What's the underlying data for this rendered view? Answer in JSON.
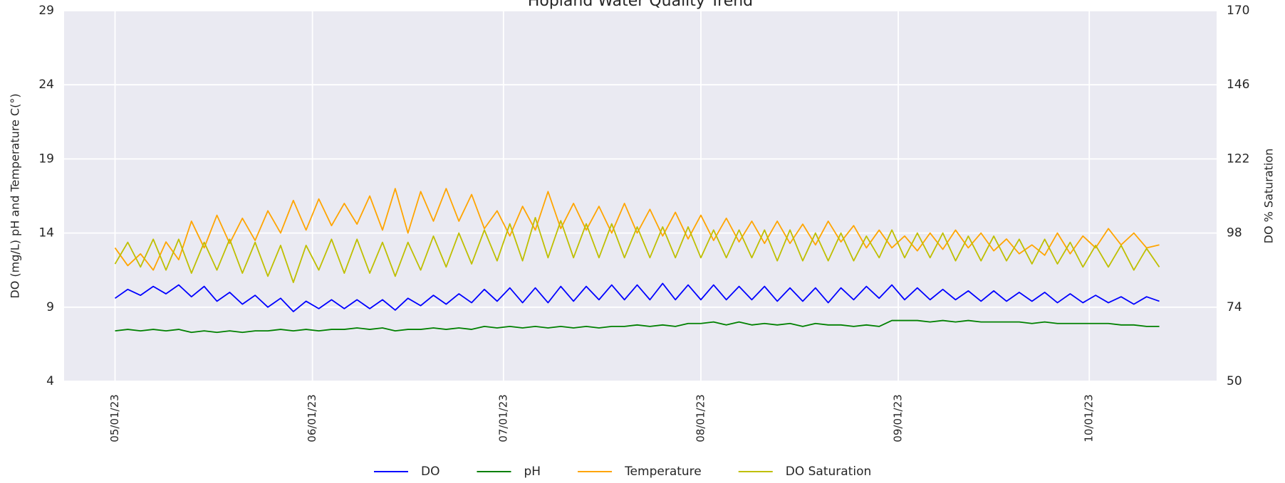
{
  "chart_data": {
    "type": "line",
    "title": "Hopland Water Quality Trend",
    "ylabel": "DO (mg/L) pH and Temperature C(°)",
    "y2label": "DO % Saturation",
    "x": [
      "2023-05-01",
      "2023-05-03",
      "2023-05-05",
      "2023-05-07",
      "2023-05-09",
      "2023-05-11",
      "2023-05-13",
      "2023-05-15",
      "2023-05-17",
      "2023-05-19",
      "2023-05-21",
      "2023-05-23",
      "2023-05-25",
      "2023-05-27",
      "2023-05-29",
      "2023-05-31",
      "2023-06-02",
      "2023-06-04",
      "2023-06-06",
      "2023-06-08",
      "2023-06-10",
      "2023-06-12",
      "2023-06-14",
      "2023-06-16",
      "2023-06-18",
      "2023-06-20",
      "2023-06-22",
      "2023-06-24",
      "2023-06-26",
      "2023-06-28",
      "2023-06-30",
      "2023-07-02",
      "2023-07-04",
      "2023-07-06",
      "2023-07-08",
      "2023-07-10",
      "2023-07-12",
      "2023-07-14",
      "2023-07-16",
      "2023-07-18",
      "2023-07-20",
      "2023-07-22",
      "2023-07-24",
      "2023-07-26",
      "2023-07-28",
      "2023-07-30",
      "2023-08-01",
      "2023-08-03",
      "2023-08-05",
      "2023-08-07",
      "2023-08-09",
      "2023-08-11",
      "2023-08-13",
      "2023-08-15",
      "2023-08-17",
      "2023-08-19",
      "2023-08-21",
      "2023-08-23",
      "2023-08-25",
      "2023-08-27",
      "2023-08-29",
      "2023-08-31",
      "2023-09-02",
      "2023-09-04",
      "2023-09-06",
      "2023-09-08",
      "2023-09-10",
      "2023-09-12",
      "2023-09-14",
      "2023-09-16",
      "2023-09-18",
      "2023-09-20",
      "2023-09-22",
      "2023-09-24",
      "2023-09-26",
      "2023-09-28",
      "2023-09-30",
      "2023-10-02",
      "2023-10-04",
      "2023-10-06",
      "2023-10-08",
      "2023-10-10",
      "2023-10-12"
    ],
    "series": [
      {
        "name": "DO",
        "color": "#0000ff",
        "values": [
          9.6,
          10.2,
          9.8,
          10.4,
          9.9,
          10.5,
          9.7,
          10.4,
          9.4,
          10.0,
          9.2,
          9.8,
          9.0,
          9.6,
          8.7,
          9.4,
          8.9,
          9.5,
          8.9,
          9.5,
          8.9,
          9.5,
          8.8,
          9.6,
          9.1,
          9.8,
          9.2,
          9.9,
          9.3,
          10.2,
          9.4,
          10.3,
          9.3,
          10.3,
          9.3,
          10.4,
          9.4,
          10.4,
          9.5,
          10.5,
          9.5,
          10.5,
          9.5,
          10.6,
          9.5,
          10.5,
          9.5,
          10.5,
          9.5,
          10.4,
          9.5,
          10.4,
          9.4,
          10.3,
          9.4,
          10.3,
          9.3,
          10.3,
          9.5,
          10.4,
          9.6,
          10.5,
          9.5,
          10.3,
          9.5,
          10.2,
          9.5,
          10.1,
          9.4,
          10.1,
          9.4,
          10.0,
          9.4,
          10.0,
          9.3,
          9.9,
          9.3,
          9.8,
          9.3,
          9.7,
          9.2,
          9.7,
          9.4
        ]
      },
      {
        "name": "pH",
        "color": "#008000",
        "values": [
          7.4,
          7.5,
          7.4,
          7.5,
          7.4,
          7.5,
          7.3,
          7.4,
          7.3,
          7.4,
          7.3,
          7.4,
          7.4,
          7.5,
          7.4,
          7.5,
          7.4,
          7.5,
          7.5,
          7.6,
          7.5,
          7.6,
          7.4,
          7.5,
          7.5,
          7.6,
          7.5,
          7.6,
          7.5,
          7.7,
          7.6,
          7.7,
          7.6,
          7.7,
          7.6,
          7.7,
          7.6,
          7.7,
          7.6,
          7.7,
          7.7,
          7.8,
          7.7,
          7.8,
          7.7,
          7.9,
          7.9,
          8.0,
          7.8,
          8.0,
          7.8,
          7.9,
          7.8,
          7.9,
          7.7,
          7.9,
          7.8,
          7.8,
          7.7,
          7.8,
          7.7,
          8.1,
          8.1,
          8.1,
          8.0,
          8.1,
          8.0,
          8.1,
          8.0,
          8.0,
          8.0,
          8.0,
          7.9,
          8.0,
          7.9,
          7.9,
          7.9,
          7.9,
          7.9,
          7.8,
          7.8,
          7.7,
          7.7
        ]
      },
      {
        "name": "Temperature",
        "color": "#ffa500",
        "values": [
          13.0,
          11.8,
          12.6,
          11.5,
          13.4,
          12.2,
          14.8,
          13.0,
          15.2,
          13.3,
          15.0,
          13.5,
          15.5,
          14.0,
          16.2,
          14.2,
          16.3,
          14.5,
          16.0,
          14.6,
          16.5,
          14.2,
          17.0,
          14.0,
          16.8,
          14.8,
          17.0,
          14.8,
          16.6,
          14.3,
          15.5,
          13.8,
          15.8,
          14.2,
          16.8,
          14.3,
          16.0,
          14.2,
          15.8,
          14.0,
          16.0,
          14.0,
          15.6,
          13.8,
          15.4,
          13.6,
          15.2,
          13.5,
          15.0,
          13.4,
          14.8,
          13.3,
          14.8,
          13.3,
          14.6,
          13.2,
          14.8,
          13.4,
          14.5,
          13.0,
          14.2,
          13.0,
          13.8,
          12.8,
          14.0,
          12.9,
          14.2,
          13.0,
          14.0,
          12.8,
          13.6,
          12.6,
          13.2,
          12.5,
          14.0,
          12.6,
          13.8,
          13.0,
          14.3,
          13.2,
          14.0,
          13.0,
          13.2
        ]
      },
      {
        "name": "DO Saturation",
        "color": "#bfbf00",
        "axis": "y2",
        "values": [
          88,
          95,
          87,
          96,
          86,
          96,
          85,
          95,
          86,
          96,
          85,
          95,
          84,
          94,
          82,
          94,
          86,
          96,
          85,
          96,
          85,
          95,
          84,
          95,
          86,
          97,
          87,
          98,
          88,
          99,
          89,
          101,
          89,
          103,
          90,
          102,
          90,
          101,
          90,
          101,
          90,
          100,
          90,
          100,
          90,
          100,
          90,
          99,
          90,
          99,
          90,
          99,
          89,
          99,
          89,
          98,
          89,
          98,
          89,
          97,
          90,
          99,
          90,
          98,
          90,
          98,
          89,
          97,
          89,
          97,
          89,
          96,
          88,
          96,
          88,
          95,
          87,
          94,
          87,
          94,
          86,
          93,
          87
        ]
      }
    ],
    "xlim": [
      "2023-04-23",
      "2023-10-21"
    ],
    "xticks": [
      {
        "value": "2023-05-01",
        "label": "05/01/23"
      },
      {
        "value": "2023-06-01",
        "label": "06/01/23"
      },
      {
        "value": "2023-07-01",
        "label": "07/01/23"
      },
      {
        "value": "2023-08-01",
        "label": "08/01/23"
      },
      {
        "value": "2023-09-01",
        "label": "09/01/23"
      },
      {
        "value": "2023-10-01",
        "label": "10/01/23"
      }
    ],
    "ylim": [
      4,
      29
    ],
    "yticks": [
      4,
      9,
      14,
      19,
      24,
      29
    ],
    "y2lim": [
      50,
      170
    ],
    "y2ticks": [
      50,
      74,
      98,
      122,
      146,
      170
    ],
    "grid": true,
    "legend": "bottom"
  }
}
